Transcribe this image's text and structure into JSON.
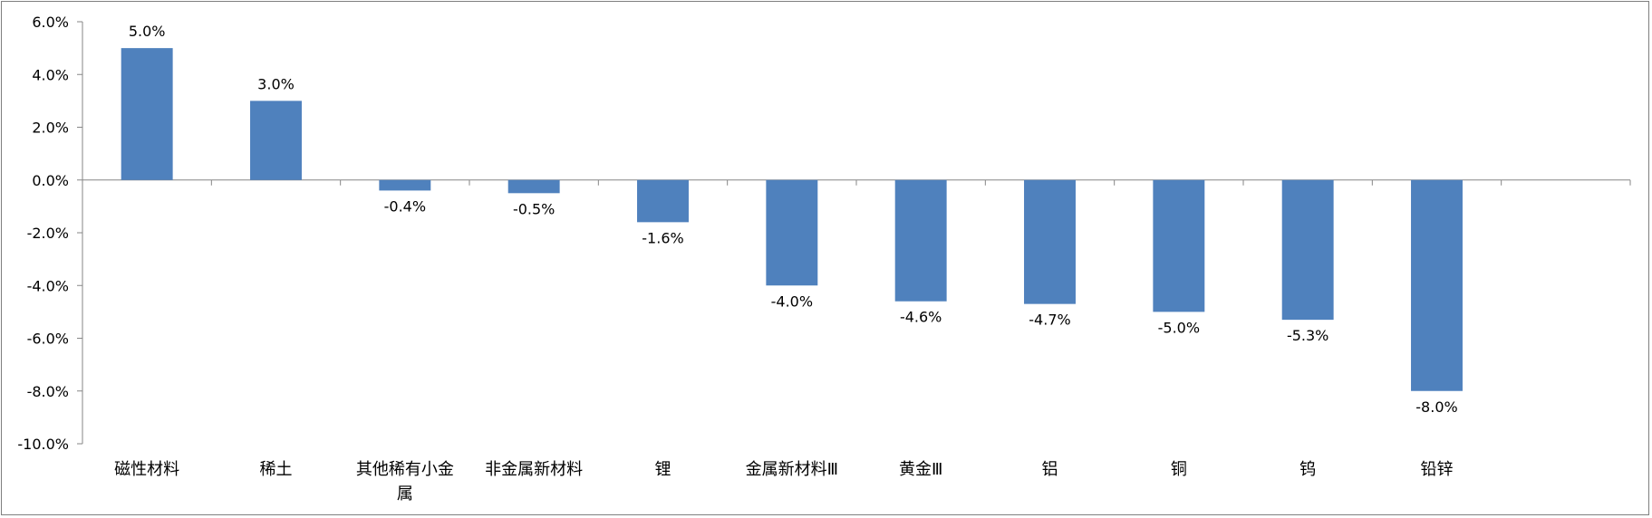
{
  "chart_data": {
    "type": "bar",
    "title": "",
    "xlabel": "",
    "ylabel": "",
    "categories": [
      "磁性材料",
      "稀土",
      "其他稀有小金属",
      "非金属新材料",
      "锂",
      "金属新材料Ⅲ",
      "黄金Ⅲ",
      "铝",
      "铜",
      "钨",
      "铅锌"
    ],
    "category_lines": [
      [
        "磁性材料"
      ],
      [
        "稀土"
      ],
      [
        "其他稀有小金",
        "属"
      ],
      [
        "非金属新材料"
      ],
      [
        "锂"
      ],
      [
        "金属新材料Ⅲ"
      ],
      [
        "黄金Ⅲ"
      ],
      [
        "铝"
      ],
      [
        "铜"
      ],
      [
        "钨"
      ],
      [
        "铅锌"
      ]
    ],
    "values": [
      5.0,
      3.0,
      -0.4,
      -0.5,
      -1.6,
      -4.0,
      -4.6,
      -4.7,
      -5.0,
      -5.3,
      -8.0
    ],
    "data_labels": [
      "5.0%",
      "3.0%",
      "-0.4%",
      "-0.5%",
      "-1.6%",
      "-4.0%",
      "-4.6%",
      "-4.7%",
      "-5.0%",
      "-5.3%",
      "-8.0%"
    ],
    "ylim": [
      -10,
      6
    ],
    "yticks": [
      6,
      4,
      2,
      0,
      -2,
      -4,
      -6,
      -8,
      -10
    ],
    "ytick_labels": [
      "6.0%",
      "4.0%",
      "2.0%",
      "0.0%",
      "-2.0%",
      "-4.0%",
      "-6.0%",
      "-8.0%",
      "-10.0%"
    ],
    "slot_count": 12,
    "grid": false,
    "legend": "none",
    "bar_color": "#4f81bd",
    "axis_color": "#868686"
  }
}
